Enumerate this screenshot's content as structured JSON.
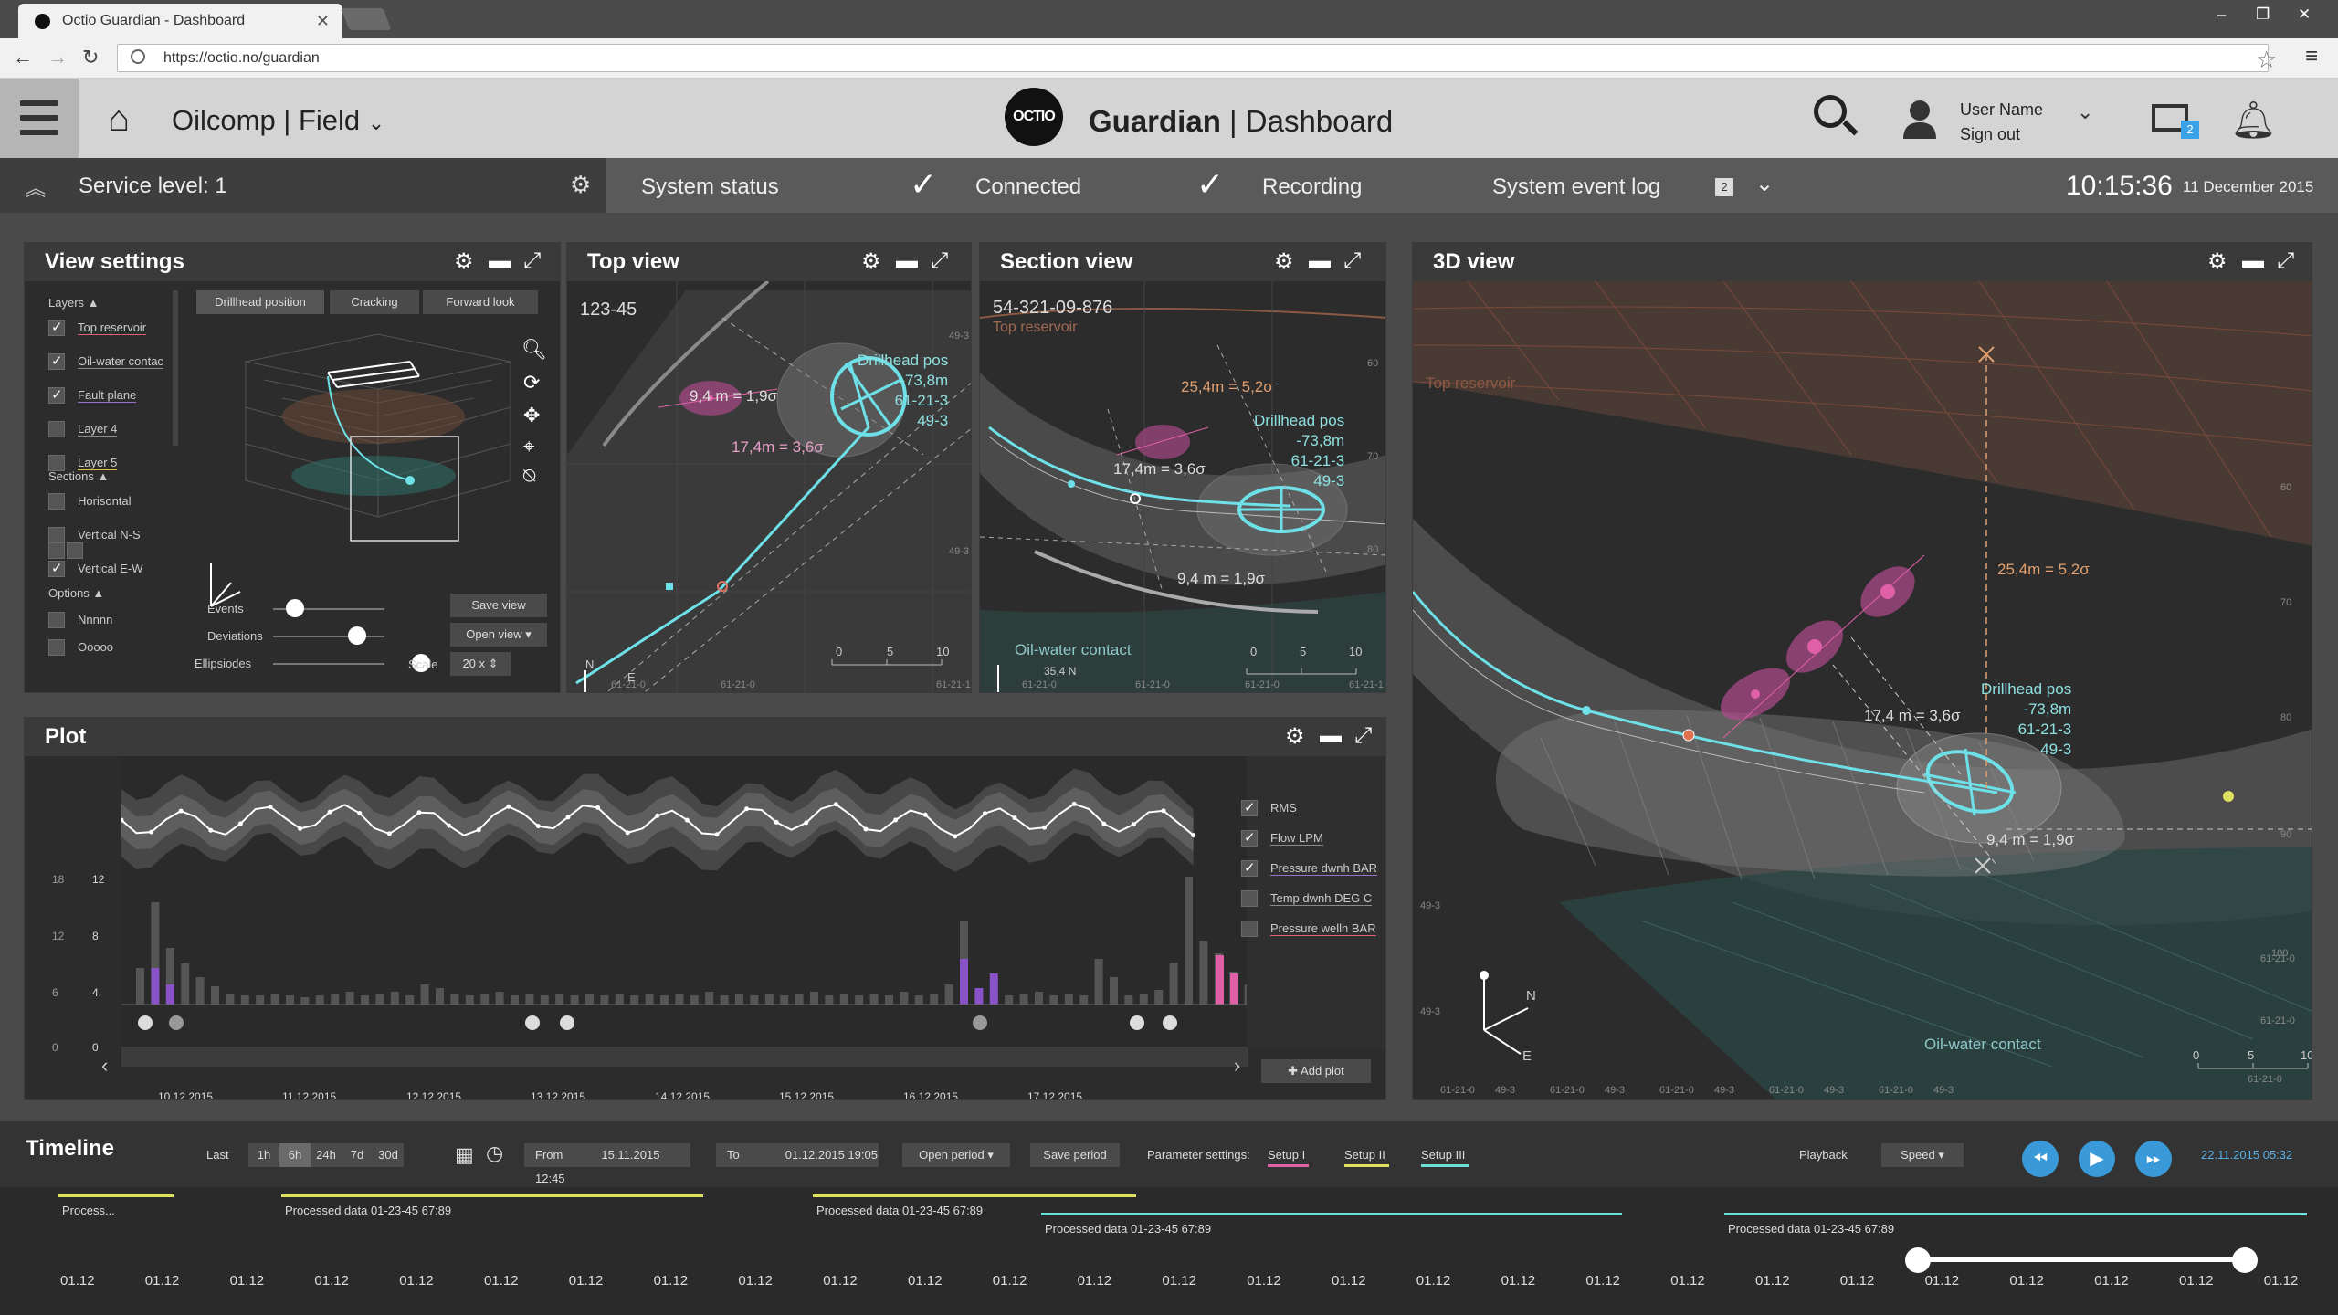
{
  "browser": {
    "tab_title": "Octio Guardian - Dashboard",
    "url": "https://octio.no/guardian"
  },
  "header": {
    "org": "Oilcomp | Field",
    "logo_text": "OCTIO",
    "app_name": "Guardian",
    "app_sep": " | Dashboard",
    "user_name": "User Name",
    "sign_out": "Sign out",
    "mail_count": "2"
  },
  "statusbar": {
    "service_level": "Service level: 1",
    "system_status": "System status",
    "connected": "Connected",
    "recording": "Recording",
    "event_log": "System event log",
    "event_count": "2",
    "time": "10:15:36",
    "date": "11 December 2015"
  },
  "view_settings": {
    "title": "View settings",
    "layers_label": "Layers",
    "layers": [
      {
        "label": "Top reservoir",
        "checked": true,
        "color": "#e0607a"
      },
      {
        "label": "Oil-water contac",
        "checked": true,
        "color": "#8a8a8a"
      },
      {
        "label": "Fault plane",
        "checked": true,
        "color": "#9a6fd0"
      },
      {
        "label": "Layer 4",
        "checked": false,
        "color": "#8a8a8a"
      },
      {
        "label": "Layer 5",
        "checked": false,
        "color": "#d8c04a"
      }
    ],
    "sections_label": "Sections",
    "sections": [
      {
        "label": "Horisontal",
        "checked": false
      },
      {
        "label": "Vertical N-S",
        "checked": false
      },
      {
        "label": "Vertical E-W",
        "checked": true
      }
    ],
    "options_label": "Options",
    "options": [
      {
        "label": "Nnnnn",
        "checked": false
      },
      {
        "label": "Ooooo",
        "checked": false
      }
    ],
    "tabs": [
      "Drillhead position",
      "Cracking",
      "Forward look"
    ],
    "sliders": [
      "Events",
      "Deviations",
      "Ellipsiodes"
    ],
    "save_view": "Save view",
    "open_view": "Open view",
    "scale_label": "Scale",
    "scale_value": "20 x"
  },
  "top_view": {
    "title": "Top view",
    "well_id": "123-45",
    "drillhead": [
      "Drillhead pos",
      "-73,8m",
      "61-21-3",
      "49-3"
    ],
    "dev1": "9,4 m = 1,9σ",
    "dev2": "17,4m = 3,6σ",
    "north": "N",
    "east": "E",
    "scale": [
      "0",
      "5",
      "10"
    ],
    "axis": [
      "61-21-0",
      "61-21-0",
      "61-21-1"
    ],
    "yaxis": [
      "49-3",
      "49-3"
    ]
  },
  "section_view": {
    "title": "Section view",
    "well_id": "54-321-09-876",
    "top_reservoir": "Top reservoir",
    "dev1": "25,4m = 5,2σ",
    "dev2": "17,4m = 3,6σ",
    "dev3": "9,4 m = 1,9σ",
    "drillhead": [
      "Drillhead pos",
      "-73,8m",
      "61-21-3",
      "49-3"
    ],
    "owc": "Oil-water contact",
    "north": "35,4 N",
    "scale": [
      "0",
      "5",
      "10"
    ],
    "depth": [
      "60",
      "70",
      "80"
    ],
    "axis": [
      "61-21-0",
      "61-21-0",
      "61-21-0",
      "61-21-1"
    ]
  },
  "view3d": {
    "title": "3D view",
    "top_reservoir": "Top reservoir",
    "dev1": "25,4m = 5,2σ",
    "dev2": "17,4 m = 3,6σ",
    "dev3": "9,4 m = 1,9σ",
    "drillhead": [
      "Drillhead pos",
      "-73,8m",
      "61-21-3",
      "49-3"
    ],
    "owc": "Oil-water contact",
    "depth": [
      "60",
      "70",
      "80",
      "90",
      "100"
    ],
    "rside": [
      "61-21-0",
      "61-21-0",
      "61-21-0"
    ],
    "left": [
      "49-3",
      "49-3"
    ],
    "bottom": [
      "61-21-0",
      "49-3",
      "61-21-0",
      "49-3",
      "61-21-0",
      "49-3",
      "61-21-0",
      "49-3",
      "61-21-0",
      "49-3"
    ],
    "scale": [
      "0",
      "5",
      "10"
    ],
    "axes": [
      "N",
      "E"
    ]
  },
  "plot": {
    "title": "Plot",
    "yaxis_left": [
      "18",
      "12",
      "6",
      "0"
    ],
    "yaxis_right": [
      "12",
      "8",
      "4",
      "0"
    ],
    "dates": [
      "10.12.2015",
      "11.12.2015",
      "12.12.2015",
      "13.12.2015",
      "14.12.2015",
      "15.12.2015",
      "16.12.2015",
      "17.12.2015"
    ],
    "legend": [
      {
        "label": "RMS",
        "checked": true,
        "color": "#ffffff"
      },
      {
        "label": "Flow LPM",
        "checked": true,
        "color": "#8a8a8a"
      },
      {
        "label": "Pressure dwnh BAR",
        "checked": true,
        "color": "#9a6fd0"
      },
      {
        "label": "Temp dwnh DEG C",
        "checked": false,
        "color": "#8a8a8a"
      },
      {
        "label": "Pressure wellh BAR",
        "checked": false,
        "color": "#e0607a"
      }
    ],
    "add_plot": "Add plot"
  },
  "timeline": {
    "title": "Timeline",
    "last_label": "Last",
    "ranges": [
      "1h",
      "6h",
      "24h",
      "7d",
      "30d"
    ],
    "active_range": "6h",
    "from_label": "From",
    "from_value": "15.11.2015 12:45",
    "to_label": "To",
    "to_value": "01.12.2015 19:05",
    "open_period": "Open period",
    "save_period": "Save period",
    "param_label": "Parameter settings:",
    "setups": [
      {
        "label": "Setup I",
        "color": "#e060a8"
      },
      {
        "label": "Setup II",
        "color": "#e0e060"
      },
      {
        "label": "Setup III",
        "color": "#6ee0d8"
      }
    ],
    "playback": "Playback",
    "speed": "Speed",
    "current": "22.11.2015 05:32",
    "tracks": [
      {
        "label": "Process...",
        "color": "#e0e060"
      },
      {
        "label": "Processed data 01-23-45 67:89",
        "color": "#e0e060"
      },
      {
        "label": "Processed data 01-23-45 67:89",
        "color": "#e0e060"
      },
      {
        "label": "Processed data 01-23-45 67:89",
        "color": "#6ee0d8"
      },
      {
        "label": "Processed data 01-23-45 67:89",
        "color": "#6ee0d8"
      }
    ],
    "dates": [
      "01.12",
      "01.12",
      "01.12",
      "01.12",
      "01.12",
      "01.12",
      "01.12",
      "01.12",
      "01.12",
      "01.12",
      "01.12",
      "01.12",
      "01.12",
      "01.12",
      "01.12",
      "01.12",
      "01.12",
      "01.12",
      "01.12",
      "01.12",
      "01.12",
      "01.12",
      "01.12",
      "01.12",
      "01.12",
      "01.12",
      "01.12"
    ]
  },
  "icons": [
    "home-icon",
    "search-icon",
    "user-icon",
    "mail-icon",
    "bell-icon",
    "gear-icon",
    "minimize-icon",
    "expand-icon",
    "check-icon",
    "chevron-down-icon"
  ]
}
